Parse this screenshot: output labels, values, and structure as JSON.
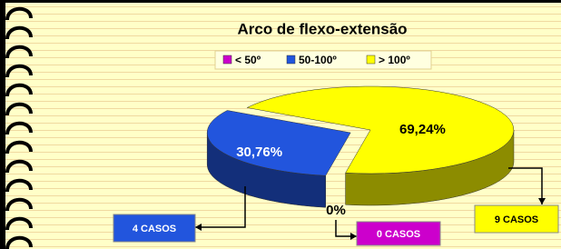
{
  "chart_data": {
    "type": "pie3d",
    "title": "Arco de flexo-extensão",
    "categories": [
      "< 50º",
      "50-100º",
      "> 100º"
    ],
    "values": [
      0,
      30.76,
      69.24
    ],
    "value_labels": [
      "0%",
      "30,76%",
      "69,24%"
    ],
    "colors": [
      "#cc00cc",
      "#2255dd",
      "#ffff00"
    ],
    "annotations": [
      "0 CASOS",
      "4 CASOS",
      "9 CASOS"
    ],
    "legend": "top"
  }
}
